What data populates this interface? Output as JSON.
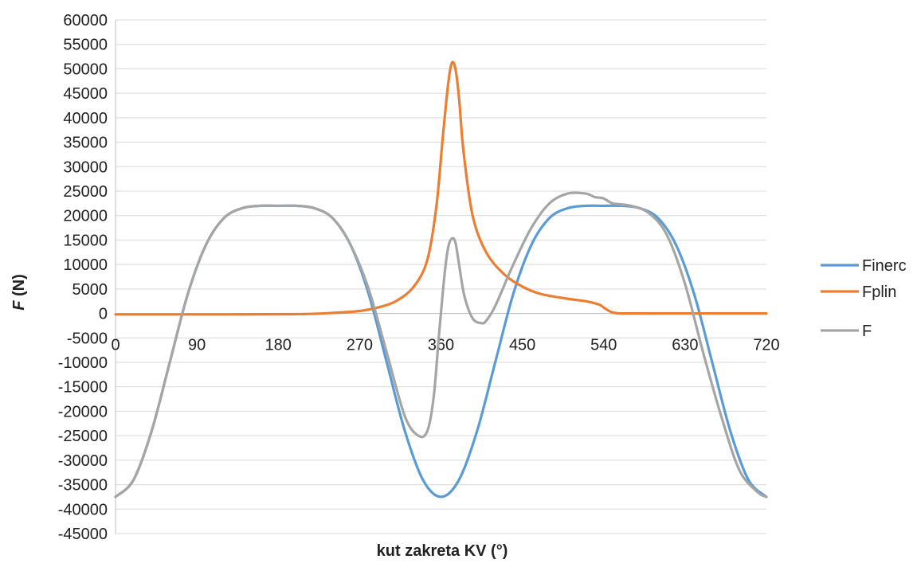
{
  "chart_data": {
    "type": "line",
    "title": "",
    "xlabel": "kut zakreta KV (°)",
    "ylabel_italic": "F",
    "ylabel_rest": " (N)",
    "xlim": [
      0,
      720
    ],
    "ylim": [
      -45000,
      60000
    ],
    "x_ticks": [
      0,
      90,
      180,
      270,
      360,
      450,
      540,
      630,
      720
    ],
    "y_ticks": [
      60000,
      55000,
      50000,
      45000,
      40000,
      35000,
      30000,
      25000,
      20000,
      15000,
      10000,
      5000,
      0,
      -5000,
      -10000,
      -15000,
      -20000,
      -25000,
      -30000,
      -35000,
      -40000,
      -45000
    ],
    "grid": "horizontal",
    "legend_position": "right",
    "colors": {
      "Finerc": "#5b9bd5",
      "Fplin": "#ed7d31",
      "F": "#a5a5a5"
    },
    "series": [
      {
        "name": "Finerc",
        "x": [
          0,
          20,
          40,
          60,
          80,
          100,
          120,
          140,
          160,
          180,
          200,
          220,
          240,
          260,
          280,
          300,
          320,
          340,
          360,
          380,
          400,
          420,
          440,
          460,
          480,
          500,
          520,
          540,
          560,
          580,
          600,
          620,
          640,
          660,
          680,
          700,
          720
        ],
        "y": [
          -37500,
          -34000,
          -24000,
          -10000,
          4000,
          14000,
          19500,
          21500,
          22000,
          22000,
          22000,
          21500,
          19500,
          14000,
          4000,
          -10000,
          -24000,
          -34000,
          -37500,
          -34000,
          -24000,
          -10000,
          4000,
          14000,
          19500,
          21500,
          22000,
          22000,
          22000,
          21500,
          19500,
          14000,
          4000,
          -10000,
          -24000,
          -34000,
          -37500
        ]
      },
      {
        "name": "Fplin",
        "x": [
          0,
          100,
          200,
          240,
          270,
          290,
          310,
          330,
          345,
          355,
          362,
          368,
          372,
          376,
          380,
          385,
          395,
          410,
          430,
          450,
          470,
          500,
          520,
          535,
          540,
          545,
          550,
          560,
          600,
          650,
          720
        ],
        "y": [
          -200,
          -200,
          -150,
          100,
          500,
          1200,
          2500,
          5500,
          11000,
          22000,
          36000,
          47000,
          51200,
          50000,
          44000,
          33000,
          20000,
          12500,
          8000,
          5500,
          4000,
          3000,
          2500,
          1800,
          1200,
          600,
          200,
          0,
          0,
          0,
          0
        ]
      },
      {
        "name": "F",
        "x": [
          0,
          20,
          40,
          60,
          80,
          100,
          120,
          140,
          160,
          180,
          200,
          220,
          240,
          260,
          280,
          300,
          320,
          335,
          345,
          352,
          358,
          364,
          368,
          372,
          376,
          380,
          386,
          395,
          405,
          410,
          420,
          440,
          460,
          480,
          500,
          520,
          530,
          540,
          550,
          570,
          590,
          610,
          630,
          650,
          670,
          690,
          710,
          720
        ],
        "y": [
          -37500,
          -34000,
          -24000,
          -10000,
          4000,
          14000,
          19500,
          21500,
          22000,
          22000,
          22000,
          21500,
          19500,
          14000,
          5000,
          -8000,
          -21000,
          -25000,
          -24000,
          -17000,
          -4000,
          8000,
          13500,
          15300,
          14500,
          10000,
          3500,
          -1000,
          -2000,
          -1500,
          1500,
          10000,
          17500,
          22500,
          24500,
          24500,
          23800,
          23500,
          22500,
          22000,
          20500,
          16000,
          6000,
          -8000,
          -21000,
          -32000,
          -36500,
          -37500
        ]
      }
    ]
  }
}
